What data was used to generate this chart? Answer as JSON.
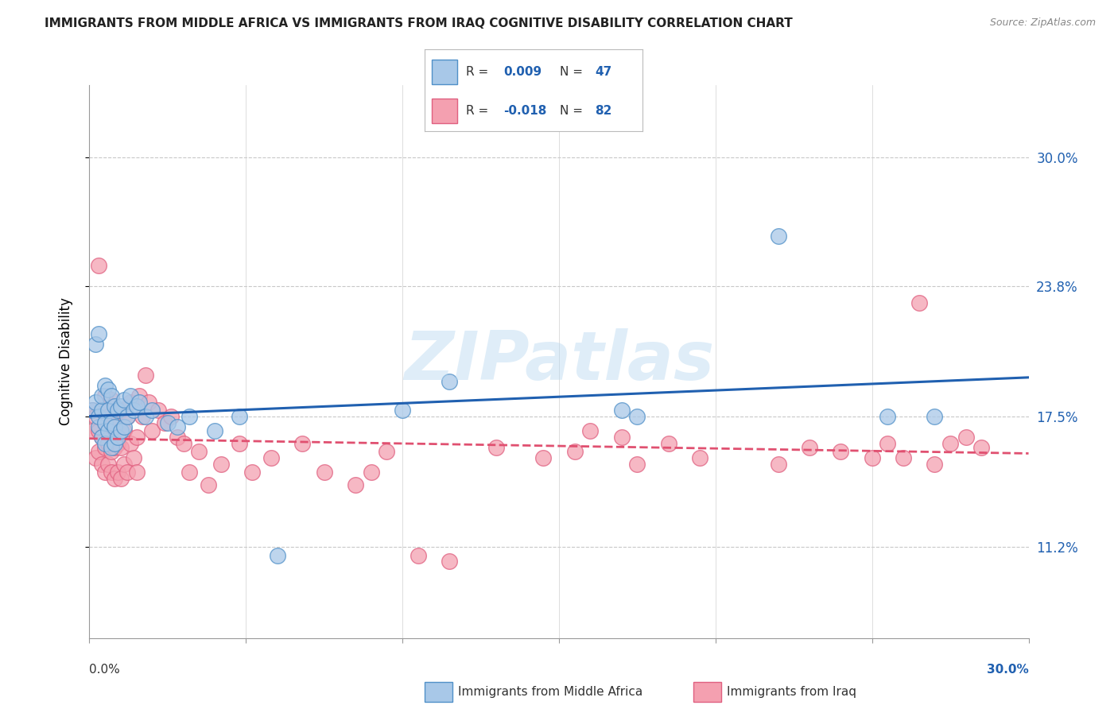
{
  "title": "IMMIGRANTS FROM MIDDLE AFRICA VS IMMIGRANTS FROM IRAQ COGNITIVE DISABILITY CORRELATION CHART",
  "source": "Source: ZipAtlas.com",
  "ylabel": "Cognitive Disability",
  "ytick_labels": [
    "11.2%",
    "17.5%",
    "23.8%",
    "30.0%"
  ],
  "ytick_values": [
    0.112,
    0.175,
    0.238,
    0.3
  ],
  "xlim": [
    0.0,
    0.3
  ],
  "ylim": [
    0.068,
    0.335
  ],
  "legend_label_blue": "Immigrants from Middle Africa",
  "legend_label_pink": "Immigrants from Iraq",
  "blue_color": "#a8c8e8",
  "pink_color": "#f4a0b0",
  "blue_edge_color": "#5090c8",
  "pink_edge_color": "#e06080",
  "blue_line_color": "#2060b0",
  "pink_line_color": "#e05070",
  "watermark": "ZIPatlas",
  "blue_x": [
    0.001,
    0.002,
    0.002,
    0.003,
    0.003,
    0.003,
    0.004,
    0.004,
    0.004,
    0.005,
    0.005,
    0.005,
    0.006,
    0.006,
    0.006,
    0.007,
    0.007,
    0.007,
    0.008,
    0.008,
    0.008,
    0.009,
    0.009,
    0.01,
    0.01,
    0.011,
    0.011,
    0.012,
    0.013,
    0.014,
    0.015,
    0.016,
    0.018,
    0.02,
    0.025,
    0.028,
    0.032,
    0.04,
    0.048,
    0.06,
    0.1,
    0.115,
    0.17,
    0.175,
    0.22,
    0.255,
    0.27
  ],
  "blue_y": [
    0.178,
    0.182,
    0.21,
    0.17,
    0.175,
    0.215,
    0.165,
    0.178,
    0.185,
    0.162,
    0.172,
    0.19,
    0.168,
    0.178,
    0.188,
    0.16,
    0.172,
    0.185,
    0.162,
    0.17,
    0.18,
    0.165,
    0.178,
    0.168,
    0.18,
    0.17,
    0.183,
    0.175,
    0.185,
    0.178,
    0.18,
    0.182,
    0.175,
    0.178,
    0.172,
    0.17,
    0.175,
    0.168,
    0.175,
    0.108,
    0.178,
    0.192,
    0.178,
    0.175,
    0.262,
    0.175,
    0.175
  ],
  "pink_x": [
    0.001,
    0.001,
    0.002,
    0.002,
    0.003,
    0.003,
    0.003,
    0.004,
    0.004,
    0.004,
    0.005,
    0.005,
    0.005,
    0.005,
    0.006,
    0.006,
    0.006,
    0.007,
    0.007,
    0.007,
    0.007,
    0.008,
    0.008,
    0.008,
    0.009,
    0.009,
    0.009,
    0.01,
    0.01,
    0.01,
    0.011,
    0.011,
    0.012,
    0.012,
    0.013,
    0.013,
    0.014,
    0.015,
    0.015,
    0.016,
    0.017,
    0.018,
    0.019,
    0.02,
    0.022,
    0.024,
    0.026,
    0.028,
    0.03,
    0.032,
    0.035,
    0.038,
    0.042,
    0.048,
    0.052,
    0.058,
    0.068,
    0.075,
    0.085,
    0.09,
    0.095,
    0.105,
    0.115,
    0.13,
    0.145,
    0.155,
    0.16,
    0.17,
    0.175,
    0.185,
    0.195,
    0.22,
    0.23,
    0.24,
    0.25,
    0.255,
    0.26,
    0.265,
    0.27,
    0.275,
    0.28,
    0.285
  ],
  "pink_y": [
    0.168,
    0.178,
    0.155,
    0.175,
    0.158,
    0.168,
    0.248,
    0.152,
    0.165,
    0.178,
    0.148,
    0.16,
    0.172,
    0.185,
    0.152,
    0.162,
    0.175,
    0.148,
    0.158,
    0.17,
    0.183,
    0.145,
    0.16,
    0.175,
    0.148,
    0.162,
    0.178,
    0.145,
    0.16,
    0.178,
    0.152,
    0.168,
    0.148,
    0.175,
    0.162,
    0.182,
    0.155,
    0.148,
    0.165,
    0.185,
    0.175,
    0.195,
    0.182,
    0.168,
    0.178,
    0.172,
    0.175,
    0.165,
    0.162,
    0.148,
    0.158,
    0.142,
    0.152,
    0.162,
    0.148,
    0.155,
    0.162,
    0.148,
    0.142,
    0.148,
    0.158,
    0.108,
    0.105,
    0.16,
    0.155,
    0.158,
    0.168,
    0.165,
    0.152,
    0.162,
    0.155,
    0.152,
    0.16,
    0.158,
    0.155,
    0.162,
    0.155,
    0.23,
    0.152,
    0.162,
    0.165,
    0.16
  ]
}
